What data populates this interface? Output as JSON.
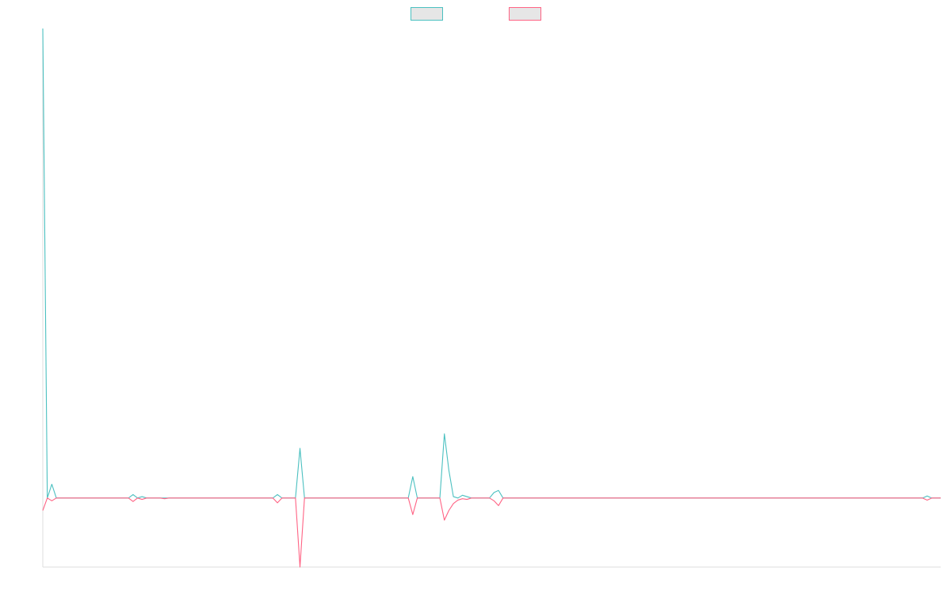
{
  "chart_data": {
    "type": "line",
    "title": "",
    "xlabel": "",
    "ylabel": "",
    "x": [
      0,
      1,
      2,
      3,
      4,
      5,
      6,
      7,
      8,
      9,
      10,
      11,
      12,
      13,
      14,
      15,
      16,
      17,
      18,
      19,
      20,
      21,
      22,
      23,
      24,
      25,
      26,
      27,
      28,
      29,
      30,
      31,
      32,
      33,
      34,
      35,
      36,
      37,
      38,
      39,
      40,
      41,
      42,
      43,
      44,
      45,
      46,
      47,
      48,
      49,
      50,
      51,
      52,
      53,
      54,
      55,
      56,
      57,
      58,
      59,
      60,
      61,
      62,
      63,
      64,
      65,
      66,
      67,
      68,
      69,
      70,
      71,
      72,
      73,
      74,
      75,
      76,
      77,
      78,
      79,
      80,
      81,
      82,
      83,
      84,
      85,
      86,
      87,
      88,
      89,
      90,
      91,
      92,
      93,
      94,
      95,
      96,
      97,
      98,
      99,
      100,
      101,
      102,
      103,
      104,
      105,
      106,
      107,
      108,
      109,
      110,
      111,
      112,
      113,
      114,
      115,
      116,
      117,
      118,
      119,
      120,
      121,
      122,
      123,
      124,
      125,
      126,
      127,
      128,
      129,
      130,
      131,
      132,
      133,
      134,
      135,
      136,
      137,
      138,
      139,
      140,
      141,
      142,
      143,
      144,
      145,
      146,
      147,
      148,
      149,
      150,
      151,
      152,
      153,
      154,
      155,
      156,
      157,
      158,
      159,
      160,
      161,
      162,
      163,
      164,
      165,
      166,
      167,
      168,
      169,
      170,
      171,
      172,
      173,
      174,
      175,
      176,
      177,
      178,
      179,
      180,
      181,
      182,
      183,
      184,
      185,
      186,
      187,
      188,
      189,
      190,
      191,
      192,
      193,
      194,
      195,
      196,
      197,
      198,
      199
    ],
    "ylim": [
      -100,
      680
    ],
    "grid": false,
    "legend_position": "top-center",
    "series": [
      {
        "color": "#4bc0c0",
        "fill": "#e6e6e6",
        "values": [
          680,
          0,
          20,
          0,
          0,
          0,
          0,
          0,
          0,
          0,
          0,
          0,
          0,
          0,
          0,
          0,
          0,
          0,
          0,
          0,
          5,
          0,
          2,
          0,
          0,
          0,
          0,
          0,
          0,
          0,
          0,
          0,
          0,
          0,
          0,
          0,
          0,
          0,
          0,
          0,
          0,
          0,
          0,
          0,
          0,
          0,
          0,
          0,
          0,
          0,
          0,
          0,
          5,
          0,
          0,
          0,
          0,
          72,
          0,
          0,
          0,
          0,
          0,
          0,
          0,
          0,
          0,
          0,
          0,
          0,
          0,
          0,
          0,
          0,
          0,
          0,
          0,
          0,
          0,
          0,
          0,
          0,
          31,
          0,
          0,
          0,
          0,
          0,
          0,
          93,
          40,
          2,
          0,
          4,
          2,
          0,
          0,
          0,
          0,
          0,
          8,
          11,
          0,
          0,
          0,
          0,
          0,
          0,
          0,
          0,
          0,
          0,
          0,
          0,
          0,
          0,
          0,
          0,
          0,
          0,
          0,
          0,
          0,
          0,
          0,
          0,
          0,
          0,
          0,
          0,
          0,
          0,
          0,
          0,
          0,
          0,
          0,
          0,
          0,
          0,
          0,
          0,
          0,
          0,
          0,
          0,
          0,
          0,
          0,
          0,
          0,
          0,
          0,
          0,
          0,
          0,
          0,
          0,
          0,
          0,
          0,
          0,
          0,
          0,
          0,
          0,
          0,
          0,
          0,
          0,
          0,
          0,
          0,
          0,
          0,
          0,
          0,
          0,
          0,
          0,
          0,
          0,
          0,
          0,
          0,
          0,
          0,
          0,
          0,
          0,
          0,
          0,
          0,
          0,
          0,
          0,
          3,
          0,
          0,
          0
        ]
      },
      {
        "color": "#ff6384",
        "fill": "#e6e6e6",
        "values": [
          -18,
          0,
          -4,
          0,
          0,
          0,
          0,
          0,
          0,
          0,
          0,
          0,
          0,
          0,
          0,
          0,
          0,
          0,
          0,
          0,
          -5,
          0,
          -2,
          0,
          0,
          0,
          0,
          -1,
          0,
          0,
          0,
          0,
          0,
          0,
          0,
          0,
          0,
          0,
          0,
          0,
          0,
          0,
          0,
          0,
          0,
          0,
          0,
          0,
          0,
          0,
          0,
          0,
          -7,
          0,
          0,
          0,
          0,
          -100,
          0,
          0,
          0,
          0,
          0,
          0,
          0,
          0,
          0,
          0,
          0,
          0,
          0,
          0,
          0,
          0,
          0,
          0,
          0,
          0,
          0,
          0,
          0,
          0,
          -24,
          0,
          0,
          0,
          0,
          0,
          0,
          -32,
          -18,
          -8,
          -3,
          -1,
          -2,
          0,
          0,
          0,
          0,
          0,
          -4,
          -11,
          0,
          0,
          0,
          0,
          0,
          0,
          0,
          0,
          0,
          0,
          0,
          0,
          0,
          0,
          0,
          0,
          0,
          0,
          0,
          0,
          0,
          0,
          0,
          0,
          0,
          0,
          0,
          0,
          0,
          0,
          0,
          0,
          0,
          0,
          0,
          0,
          0,
          0,
          0,
          0,
          0,
          0,
          0,
          0,
          0,
          0,
          0,
          0,
          0,
          0,
          0,
          0,
          0,
          0,
          0,
          0,
          0,
          0,
          0,
          0,
          0,
          0,
          0,
          0,
          0,
          0,
          0,
          0,
          0,
          0,
          0,
          0,
          0,
          0,
          0,
          0,
          0,
          0,
          0,
          0,
          0,
          0,
          0,
          0,
          0,
          0,
          0,
          0,
          0,
          0,
          0,
          0,
          0,
          0,
          -3,
          0,
          0,
          0
        ]
      }
    ]
  }
}
